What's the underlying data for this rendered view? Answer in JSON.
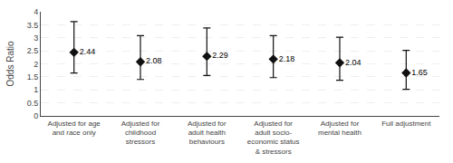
{
  "chart_data": {
    "type": "scatter",
    "categories": [
      "Adjusted for age\nand race only",
      "Adjusted for\nchildhood\nstressors",
      "Adjusted for\nadult health\nbehaviours",
      "Adjusted for\nadult socio-\neconomic status\n& stressors",
      "Adjusted for\nmental health",
      "Full adjustment"
    ],
    "values": [
      2.44,
      2.08,
      2.29,
      2.18,
      2.04,
      1.65
    ],
    "ci_lower": [
      1.65,
      1.4,
      1.55,
      1.47,
      1.37,
      1.02
    ],
    "ci_upper": [
      3.62,
      3.08,
      3.38,
      3.08,
      3.02,
      2.52
    ],
    "ylabel": "Odds Ratio",
    "ylim": [
      0,
      4
    ],
    "yticks": [
      0,
      0.5,
      1,
      1.5,
      2,
      2.5,
      3,
      3.5,
      4
    ],
    "grid": true,
    "data_labels": true,
    "marker": "diamond",
    "color": "#111111"
  }
}
